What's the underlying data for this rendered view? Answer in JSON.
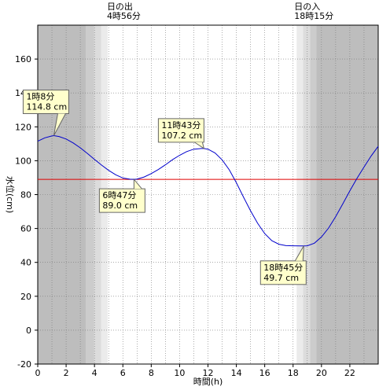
{
  "chart_data": {
    "type": "line",
    "xlabel": "時間(h)",
    "ylabel": "水位(cm)",
    "xlim": [
      0,
      24
    ],
    "ylim": [
      -20,
      180
    ],
    "x_ticks": [
      "0",
      "2",
      "4",
      "6",
      "8",
      "10",
      "12",
      "14",
      "16",
      "18",
      "20",
      "22"
    ],
    "y_ticks": [
      "-20",
      "0",
      "20",
      "40",
      "60",
      "80",
      "100",
      "120",
      "140",
      "160"
    ],
    "grid": true,
    "sunrise": {
      "title": "日の出",
      "time_label": "4時56分",
      "hour": 4.93
    },
    "sunset": {
      "title": "日の入",
      "time_label": "18時15分",
      "hour": 18.25
    },
    "reference_line": {
      "value": 89.0,
      "color": "#e00000"
    },
    "series": [
      {
        "color": "#0000cc",
        "x": [
          0,
          0.5,
          1,
          1.133,
          1.5,
          2,
          2.5,
          3,
          3.5,
          4,
          4.5,
          5,
          5.5,
          6,
          6.5,
          6.783,
          7,
          7.5,
          8,
          8.5,
          9,
          9.5,
          10,
          10.5,
          11,
          11.5,
          11.717,
          12,
          12.5,
          13,
          13.5,
          14,
          14.5,
          15,
          15.5,
          16,
          16.5,
          17,
          17.5,
          18,
          18.5,
          18.75,
          19,
          19.5,
          20,
          20.5,
          21,
          21.5,
          22,
          22.5,
          23,
          23.5,
          24
        ],
        "y": [
          111.5,
          113.5,
          114.6,
          114.8,
          114.3,
          112.8,
          110.5,
          107.6,
          104.3,
          100.8,
          97.4,
          94.3,
          91.7,
          89.8,
          89.1,
          89.0,
          89.2,
          90.4,
          92.4,
          94.8,
          97.6,
          100.6,
          103.2,
          105.4,
          106.8,
          107.2,
          107.2,
          106.8,
          104.6,
          100.5,
          94.6,
          87.0,
          78.6,
          70.5,
          63.1,
          57.0,
          52.8,
          50.7,
          49.9,
          49.8,
          49.7,
          49.7,
          49.8,
          51.3,
          55.0,
          60.3,
          67.0,
          74.5,
          82.2,
          89.5,
          96.3,
          102.8,
          108.5
        ]
      }
    ],
    "annotations": [
      {
        "time": "1時8分",
        "value": "114.8 cm",
        "x": 1.133,
        "y": 114.8
      },
      {
        "time": "6時47分",
        "value": "89.0 cm",
        "x": 6.783,
        "y": 89.0
      },
      {
        "time": "11時43分",
        "value": "107.2 cm",
        "x": 11.717,
        "y": 107.2
      },
      {
        "time": "18時45分",
        "value": "49.7 cm",
        "x": 18.75,
        "y": 49.7
      }
    ]
  }
}
